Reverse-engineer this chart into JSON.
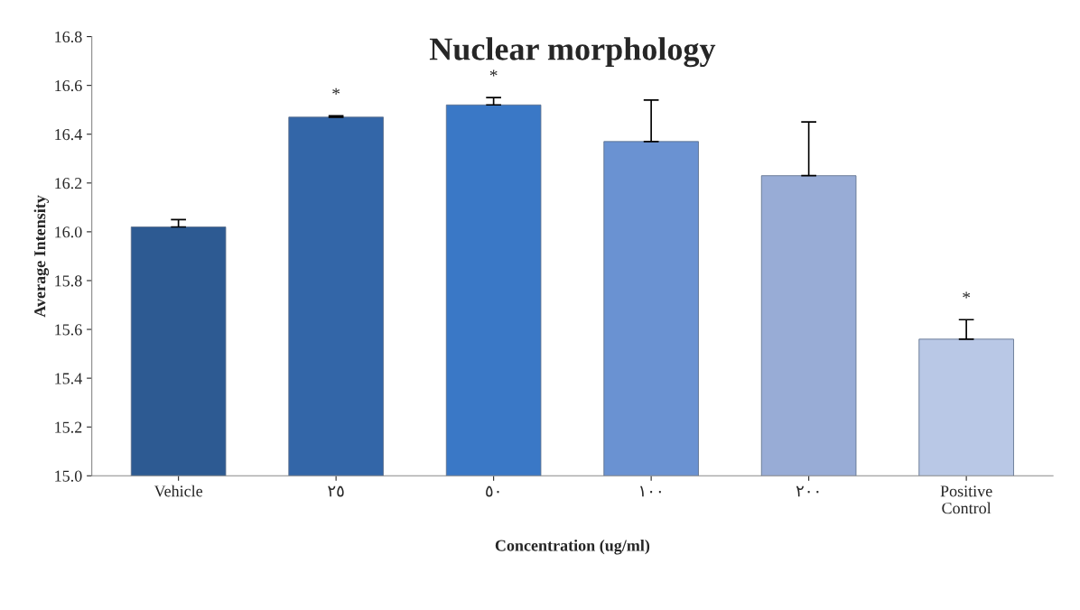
{
  "chart_data": {
    "type": "bar",
    "title": "Nuclear morphology",
    "xlabel": "Concentration (ug/ml)",
    "ylabel": "Average Intensity",
    "categories": [
      "Vehicle",
      "٢٥",
      "٥٠",
      "١٠٠",
      "٢٠٠",
      "Positive\nControl"
    ],
    "values": [
      16.02,
      16.47,
      16.52,
      16.37,
      16.23,
      15.56
    ],
    "errors": [
      [
        16.02,
        16.05
      ],
      [
        16.47,
        16.475
      ],
      [
        16.52,
        16.55
      ],
      [
        16.37,
        16.54
      ],
      [
        16.23,
        16.45
      ],
      [
        15.56,
        15.64
      ]
    ],
    "colors": [
      "#2d5a92",
      "#3366a8",
      "#3a78c6",
      "#6a92d2",
      "#98acd6",
      "#b9c8e6"
    ],
    "ylim": [
      15.0,
      16.8
    ],
    "yticks": [
      {
        "value": 15.0,
        "label": "15.0"
      },
      {
        "value": 15.2,
        "label": "15.2"
      },
      {
        "value": 15.4,
        "label": "15.4"
      },
      {
        "value": 15.6,
        "label": "15.6"
      },
      {
        "value": 15.8,
        "label": "15.8"
      },
      {
        "value": 16.0,
        "label": "16.0"
      },
      {
        "value": 16.2,
        "label": "16.2"
      },
      {
        "value": 16.4,
        "label": "16.4"
      },
      {
        "value": 16.6,
        "label": "16.6"
      },
      {
        "value": 16.8,
        "label": "16.8"
      }
    ],
    "grid": false,
    "value_labels": [
      null,
      "*",
      "*",
      null,
      null,
      "*"
    ]
  }
}
